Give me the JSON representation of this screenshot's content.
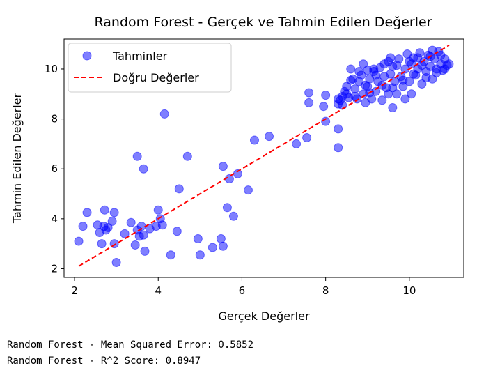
{
  "chart_data": {
    "type": "scatter",
    "title": "Random Forest - Gerçek ve Tahmin Edilen Değerler",
    "xlabel": "Gerçek Değerler",
    "ylabel": "Tahmin Edilen Değerler",
    "xlim": [
      1.75,
      11.3
    ],
    "ylim": [
      1.65,
      11.2
    ],
    "xticks": [
      2,
      4,
      6,
      8,
      10
    ],
    "yticks": [
      2,
      4,
      6,
      8,
      10
    ],
    "grid": false,
    "legend_position": "top-left",
    "scatter_series": {
      "name": "Tahminler",
      "color": "#0000ff",
      "points": [
        [
          2.1,
          3.1
        ],
        [
          2.2,
          3.7
        ],
        [
          2.3,
          4.25
        ],
        [
          2.55,
          3.75
        ],
        [
          2.6,
          3.45
        ],
        [
          2.65,
          3.0
        ],
        [
          2.7,
          3.7
        ],
        [
          2.72,
          4.35
        ],
        [
          2.75,
          3.55
        ],
        [
          2.8,
          3.65
        ],
        [
          2.9,
          3.9
        ],
        [
          2.95,
          4.25
        ],
        [
          2.95,
          3.0
        ],
        [
          3.0,
          2.25
        ],
        [
          3.2,
          3.4
        ],
        [
          3.35,
          3.85
        ],
        [
          3.45,
          2.95
        ],
        [
          3.5,
          3.55
        ],
        [
          3.55,
          3.3
        ],
        [
          3.6,
          3.7
        ],
        [
          3.65,
          3.35
        ],
        [
          3.68,
          2.7
        ],
        [
          3.8,
          3.6
        ],
        [
          3.5,
          6.5
        ],
        [
          3.65,
          6.0
        ],
        [
          4.0,
          4.35
        ],
        [
          4.05,
          4.0
        ],
        [
          3.95,
          3.7
        ],
        [
          4.1,
          3.75
        ],
        [
          4.15,
          8.2
        ],
        [
          4.3,
          2.55
        ],
        [
          4.45,
          3.5
        ],
        [
          4.5,
          5.2
        ],
        [
          4.7,
          6.5
        ],
        [
          4.95,
          3.2
        ],
        [
          5.0,
          2.55
        ],
        [
          5.3,
          2.85
        ],
        [
          5.5,
          3.2
        ],
        [
          5.55,
          2.9
        ],
        [
          5.55,
          6.1
        ],
        [
          5.65,
          4.45
        ],
        [
          5.7,
          5.6
        ],
        [
          5.8,
          4.1
        ],
        [
          5.9,
          5.8
        ],
        [
          6.15,
          5.15
        ],
        [
          6.3,
          7.15
        ],
        [
          6.65,
          7.3
        ],
        [
          7.3,
          7.0
        ],
        [
          7.55,
          7.25
        ],
        [
          7.6,
          8.65
        ],
        [
          7.6,
          9.05
        ],
        [
          7.95,
          8.5
        ],
        [
          8.0,
          8.95
        ],
        [
          8.0,
          7.9
        ],
        [
          8.3,
          6.85
        ],
        [
          8.3,
          7.6
        ],
        [
          8.3,
          8.6
        ],
        [
          8.3,
          8.8
        ],
        [
          8.4,
          8.9
        ],
        [
          8.5,
          9.3
        ],
        [
          8.55,
          8.85
        ],
        [
          8.6,
          9.55
        ],
        [
          8.6,
          10.0
        ],
        [
          8.7,
          9.2
        ],
        [
          8.75,
          8.8
        ],
        [
          8.8,
          9.5
        ],
        [
          8.85,
          9.75
        ],
        [
          8.9,
          10.2
        ],
        [
          8.9,
          9.0
        ],
        [
          8.95,
          8.65
        ],
        [
          9.0,
          9.3
        ],
        [
          9.05,
          9.6
        ],
        [
          9.1,
          8.8
        ],
        [
          9.15,
          9.9
        ],
        [
          9.2,
          9.1
        ],
        [
          9.25,
          9.5
        ],
        [
          9.3,
          10.05
        ],
        [
          9.35,
          8.75
        ],
        [
          9.4,
          9.7
        ],
        [
          9.45,
          9.25
        ],
        [
          9.5,
          10.3
        ],
        [
          9.5,
          9.0
        ],
        [
          9.55,
          9.8
        ],
        [
          9.6,
          8.45
        ],
        [
          9.6,
          10.1
        ],
        [
          9.65,
          9.5
        ],
        [
          9.7,
          9.0
        ],
        [
          9.75,
          10.4
        ],
        [
          9.8,
          9.7
        ],
        [
          9.85,
          9.3
        ],
        [
          9.9,
          10.0
        ],
        [
          9.9,
          8.8
        ],
        [
          9.95,
          10.6
        ],
        [
          10.0,
          9.5
        ],
        [
          10.05,
          10.2
        ],
        [
          10.05,
          9.0
        ],
        [
          10.1,
          10.45
        ],
        [
          10.15,
          9.75
        ],
        [
          10.2,
          10.0
        ],
        [
          10.25,
          10.65
        ],
        [
          10.3,
          9.4
        ],
        [
          10.35,
          10.3
        ],
        [
          10.4,
          9.9
        ],
        [
          10.45,
          10.55
        ],
        [
          10.5,
          10.1
        ],
        [
          10.55,
          9.6
        ],
        [
          10.6,
          10.4
        ],
        [
          10.65,
          10.0
        ],
        [
          10.7,
          10.7
        ],
        [
          10.75,
          10.2
        ],
        [
          10.8,
          9.95
        ],
        [
          10.85,
          10.4
        ],
        [
          10.9,
          10.15
        ],
        [
          10.95,
          10.2
        ],
        [
          10.55,
          10.75
        ],
        [
          10.3,
          10.15
        ],
        [
          10.0,
          10.3
        ],
        [
          9.7,
          10.15
        ],
        [
          9.4,
          10.2
        ],
        [
          9.2,
          9.75
        ],
        [
          9.0,
          9.95
        ],
        [
          8.8,
          9.9
        ],
        [
          8.65,
          9.6
        ],
        [
          8.5,
          9.0
        ],
        [
          8.4,
          8.55
        ],
        [
          8.35,
          8.75
        ],
        [
          8.45,
          9.1
        ],
        [
          8.7,
          8.9
        ],
        [
          9.05,
          9.05
        ],
        [
          9.35,
          9.35
        ],
        [
          9.6,
          9.25
        ],
        [
          9.85,
          9.55
        ],
        [
          10.1,
          9.8
        ],
        [
          10.4,
          9.65
        ],
        [
          10.65,
          9.85
        ],
        [
          10.85,
          10.0
        ],
        [
          9.55,
          10.45
        ],
        [
          9.15,
          10.0
        ],
        [
          8.95,
          9.35
        ],
        [
          10.2,
          10.45
        ],
        [
          10.5,
          10.5
        ],
        [
          10.75,
          10.55
        ]
      ]
    },
    "reference_line": {
      "name": "Doğru Değerler",
      "color": "#ff0000",
      "style": "dashed",
      "x": [
        2.1,
        10.95
      ],
      "y": [
        2.1,
        10.95
      ]
    }
  },
  "console_output": {
    "line1": "Random Forest - Mean Squared Error: 0.5852",
    "line2": "Random Forest - R^2 Score: 0.8947"
  }
}
